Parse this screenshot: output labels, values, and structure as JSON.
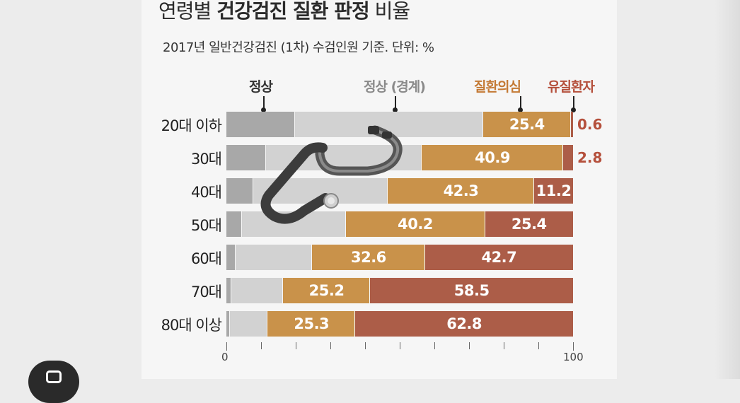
{
  "chart_data": {
    "type": "bar",
    "orientation": "horizontal",
    "stacked": true,
    "title": "연령별 건강검진 질환 판정 비율",
    "title_plain_1": "연령별 ",
    "title_bold": "건강검진 질환 판정",
    "title_plain_2": " 비율",
    "subtitle": "2017년 일반건강검진 (1차) 수검인원 기준. 단위: %",
    "categories": [
      "20대 이하",
      "30대",
      "40대",
      "50대",
      "60대",
      "70대",
      "80대 이상"
    ],
    "series": [
      {
        "name": "정상",
        "values": [
          19.7,
          11.5,
          7.8,
          4.5,
          2.6,
          1.4,
          1.1
        ],
        "color": "#a8a8a8"
      },
      {
        "name": "정상 (경계)",
        "values": [
          54.3,
          44.8,
          38.7,
          29.9,
          22.1,
          14.9,
          10.8
        ],
        "color": "#d2d2d2"
      },
      {
        "name": "질환의심",
        "values": [
          25.4,
          40.9,
          42.3,
          40.2,
          32.6,
          25.2,
          25.3
        ],
        "color": "#c9924a"
      },
      {
        "name": "유질환자",
        "values": [
          0.6,
          2.8,
          11.2,
          25.4,
          42.7,
          58.5,
          62.8
        ],
        "color": "#ac5d48"
      }
    ],
    "x_ticks": [
      "0",
      "100"
    ],
    "xlim": [
      0,
      100
    ],
    "label_colors": {
      "normal": "#333333",
      "borderline": "#8a8a8a",
      "suspected": "#c47a35",
      "patient": "#b5503c"
    }
  }
}
